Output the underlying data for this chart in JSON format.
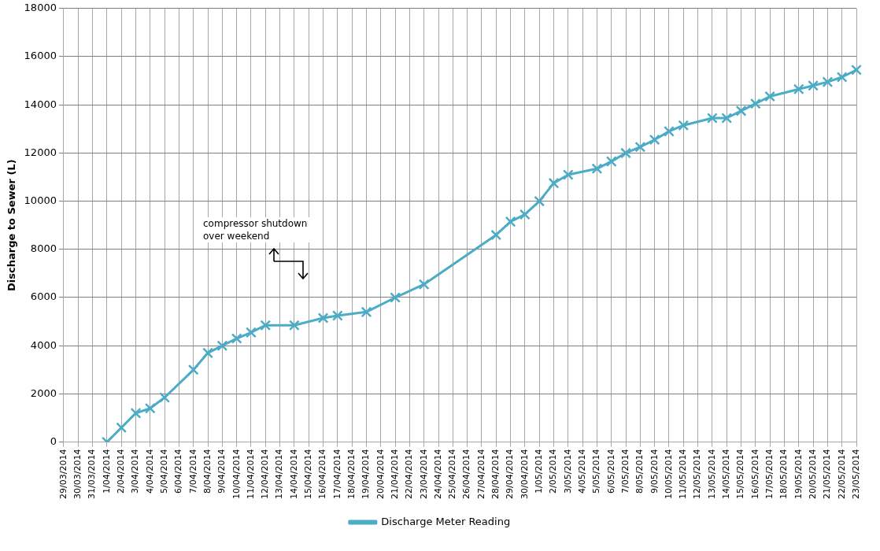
{
  "chart_data": {
    "type": "line",
    "ylabel": "Discharge to Sewer (L)",
    "categories": [
      "29/03/2014",
      "30/03/2014",
      "31/03/2014",
      "1/04/2014",
      "2/04/2014",
      "3/04/2014",
      "4/04/2014",
      "5/04/2014",
      "6/04/2014",
      "7/04/2014",
      "8/04/2014",
      "9/04/2014",
      "10/04/2014",
      "11/04/2014",
      "12/04/2014",
      "13/04/2014",
      "14/04/2014",
      "15/04/2014",
      "16/04/2014",
      "17/04/2014",
      "18/04/2014",
      "19/04/2014",
      "20/04/2014",
      "21/04/2014",
      "22/04/2014",
      "23/04/2014",
      "24/04/2014",
      "25/04/2014",
      "26/04/2014",
      "27/04/2014",
      "28/04/2014",
      "29/04/2014",
      "30/04/2014",
      "1/05/2014",
      "2/05/2014",
      "3/05/2014",
      "4/05/2014",
      "5/05/2014",
      "6/05/2014",
      "7/05/2014",
      "8/05/2014",
      "9/05/2014",
      "10/05/2014",
      "11/05/2014",
      "12/05/2014",
      "13/05/2014",
      "14/05/2014",
      "15/05/2014",
      "16/05/2014",
      "17/05/2014",
      "18/05/2014",
      "19/05/2014",
      "20/05/2014",
      "21/05/2014",
      "22/05/2014",
      "23/05/2014"
    ],
    "series": [
      {
        "name": "Discharge Meter Reading",
        "color": "#4bacc6",
        "values": [
          null,
          null,
          null,
          0,
          600,
          1200,
          1400,
          1850,
          null,
          3000,
          3700,
          4000,
          4300,
          4550,
          4850,
          null,
          4850,
          null,
          5150,
          5250,
          null,
          5400,
          null,
          6000,
          null,
          6550,
          null,
          null,
          null,
          null,
          8600,
          9150,
          9450,
          10000,
          10750,
          11100,
          null,
          11350,
          11650,
          12000,
          12250,
          12550,
          12900,
          13150,
          null,
          13450,
          13450,
          13750,
          14050,
          14350,
          null,
          14650,
          14800,
          14950,
          15150,
          15450
        ]
      }
    ],
    "ylim": [
      0,
      18000
    ],
    "yticks": [
      0,
      2000,
      4000,
      6000,
      8000,
      10000,
      12000,
      14000,
      16000,
      18000
    ],
    "grid": true,
    "legend": "bottom",
    "marker": "cross",
    "line_style": "solid",
    "annotations": [
      "compressor shutdown over weekend"
    ]
  }
}
